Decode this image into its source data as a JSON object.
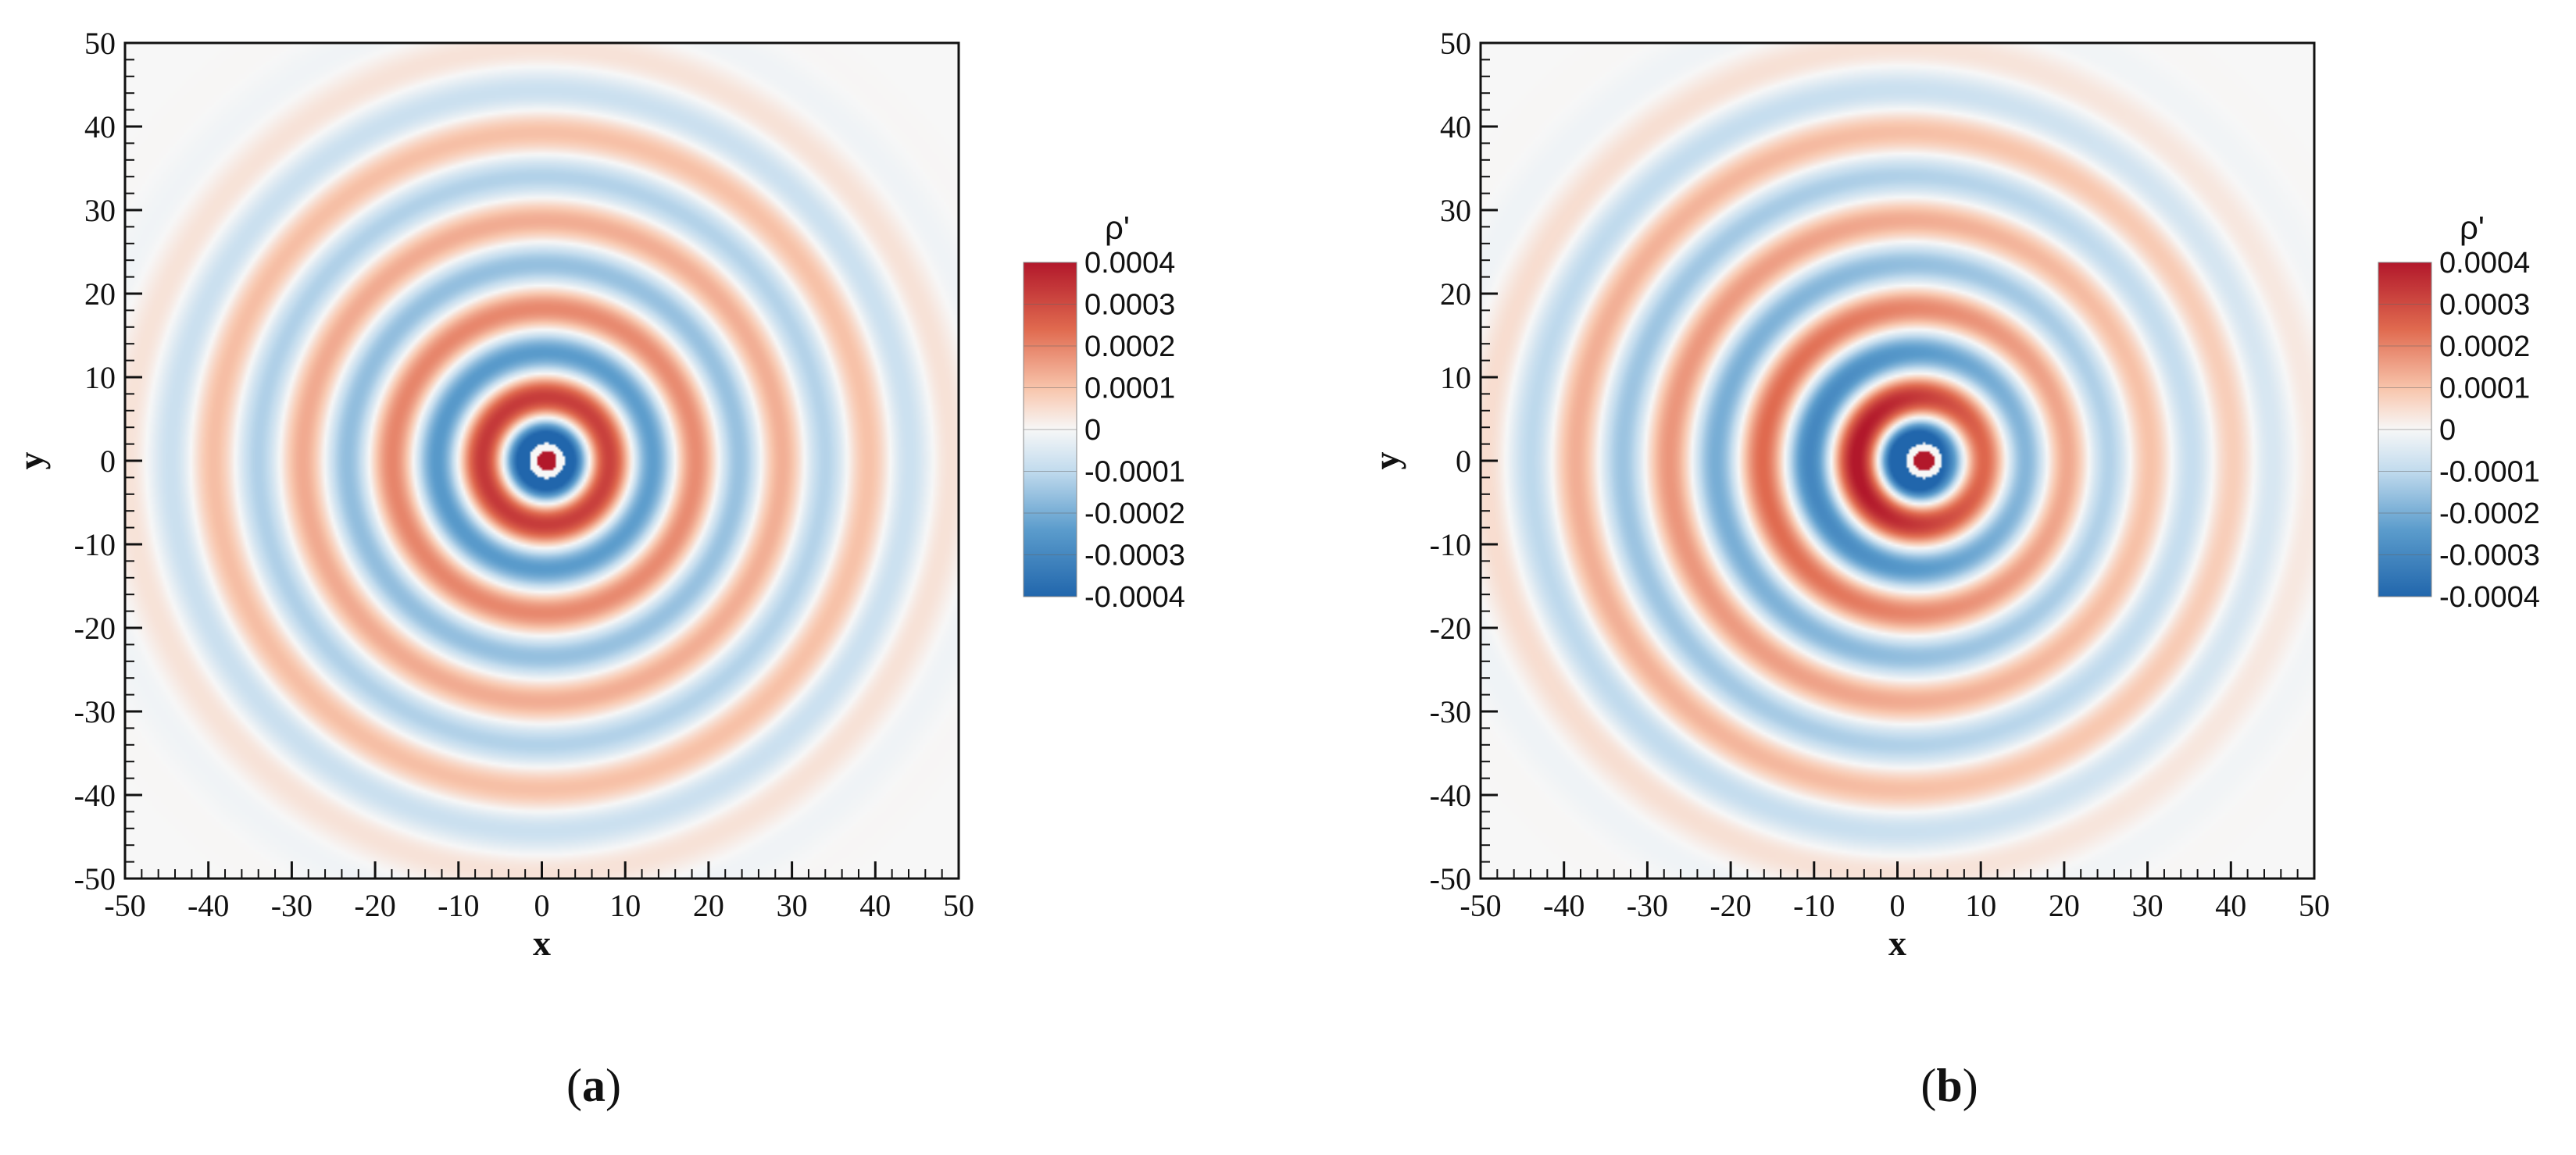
{
  "colors": {
    "positive_max": "#b2182b",
    "positive_mid": "#ef8a62",
    "positive_low": "#fddbc7",
    "zero": "#f7f7f7",
    "negative_low": "#d1e5f0",
    "negative_mid": "#67a9cf",
    "negative_max": "#2166ac"
  },
  "chart_data": [
    {
      "type": "heatmap",
      "panel_label": "a",
      "xlabel": "x",
      "ylabel": "y",
      "xlim": [
        -50,
        50
      ],
      "ylim": [
        -50,
        50
      ],
      "xticks": [
        -50,
        -40,
        -30,
        -20,
        -10,
        0,
        10,
        20,
        30,
        40,
        50
      ],
      "yticks": [
        -50,
        -40,
        -30,
        -20,
        -10,
        0,
        10,
        20,
        30,
        40,
        50
      ],
      "colorbar": {
        "title": "ρ'",
        "range": [
          -0.0004,
          0.0004
        ],
        "tick_labels": [
          "0.0004",
          "0.0003",
          "0.0002",
          "0.0001",
          "0",
          "-0.0001",
          "-0.0002",
          "-0.0003",
          "-0.0004"
        ]
      },
      "field": {
        "source": [
          0,
          0
        ],
        "shift_x": 0.6,
        "wavelength": 10.5,
        "ring_offset": 5.2,
        "asymmetry": 0.05
      }
    },
    {
      "type": "heatmap",
      "panel_label": "b",
      "xlabel": "x",
      "ylabel": "y",
      "xlim": [
        -50,
        50
      ],
      "ylim": [
        -50,
        50
      ],
      "xticks": [
        -50,
        -40,
        -30,
        -20,
        -10,
        0,
        10,
        20,
        30,
        40,
        50
      ],
      "yticks": [
        -50,
        -40,
        -30,
        -20,
        -10,
        0,
        10,
        20,
        30,
        40,
        50
      ],
      "colorbar": {
        "title": "ρ'",
        "range": [
          -0.0004,
          0.0004
        ],
        "tick_labels": [
          "0.0004",
          "0.0003",
          "0.0002",
          "0.0001",
          "0",
          "-0.0001",
          "-0.0002",
          "-0.0003",
          "-0.0004"
        ]
      },
      "field": {
        "source": [
          0,
          0
        ],
        "shift_x": 3.2,
        "wavelength": 10.5,
        "ring_offset": 5.2,
        "asymmetry": 0.45
      }
    }
  ]
}
